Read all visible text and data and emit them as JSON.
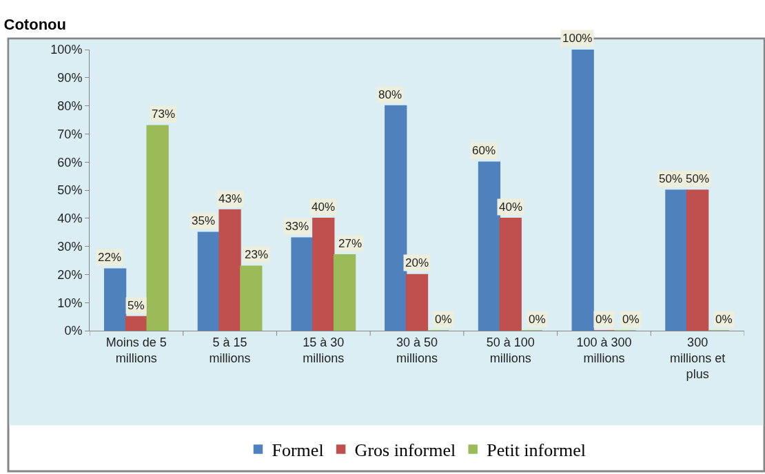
{
  "chart_data": {
    "type": "bar",
    "title": "Cotonou",
    "categories": [
      "Moins de 5 millions",
      "5 à 15 millions",
      "15 à 30 millions",
      "30 à 50 millions",
      "50 à 100 millions",
      "100 à 300 millions",
      "300 millions et plus"
    ],
    "series": [
      {
        "name": "Formel",
        "color": "#4f81bd",
        "values": [
          22,
          35,
          33,
          80,
          60,
          100,
          50
        ],
        "value_labels": [
          "22%",
          "35%",
          "33%",
          "80%",
          "60%",
          "100%",
          "50%"
        ]
      },
      {
        "name": "Gros informel",
        "color": "#c0504d",
        "values": [
          5,
          43,
          40,
          20,
          40,
          0,
          50
        ],
        "value_labels": [
          "5%",
          "43%",
          "40%",
          "20%",
          "40%",
          "0%",
          "50%"
        ]
      },
      {
        "name": "Petit informel",
        "color": "#9bbb59",
        "values": [
          73,
          23,
          27,
          0,
          0,
          0,
          0
        ],
        "value_labels": [
          "73%",
          "23%",
          "27%",
          "0%",
          "0%",
          "0%",
          "0%"
        ]
      }
    ],
    "ylim": [
      0,
      100
    ],
    "yticks": [
      {
        "value": 0,
        "label": "0%"
      },
      {
        "value": 10,
        "label": "10%"
      },
      {
        "value": 20,
        "label": "20%"
      },
      {
        "value": 30,
        "label": "30%"
      },
      {
        "value": 40,
        "label": "40%"
      },
      {
        "value": 50,
        "label": "50%"
      },
      {
        "value": 60,
        "label": "60%"
      },
      {
        "value": 70,
        "label": "70%"
      },
      {
        "value": 80,
        "label": "80%"
      },
      {
        "value": 90,
        "label": "90%"
      },
      {
        "value": 100,
        "label": "100%"
      }
    ],
    "legend": "bottom"
  }
}
